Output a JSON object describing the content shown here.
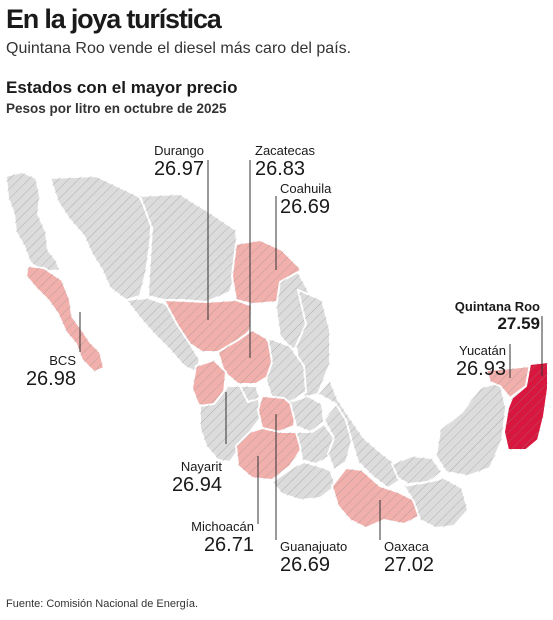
{
  "header": {
    "title": "En la joya turística",
    "subtitle": "Quintana Roo vende el diesel más caro del país."
  },
  "chart": {
    "title": "Estados con el mayor precio",
    "subtitle": "Pesos por litro en octubre de 2025"
  },
  "source": "Fuente: Comisión Nacional de Energía.",
  "colors": {
    "other_states": "#dcdcdc",
    "top_states": "#f2b0ac",
    "max_state": "#d8163e",
    "hatch": "#8a8a8a",
    "border": "#ffffff"
  },
  "states": [
    {
      "name": "Durango",
      "value": "26.97"
    },
    {
      "name": "Zacatecas",
      "value": "26.83"
    },
    {
      "name": "Coahuila",
      "value": "26.69"
    },
    {
      "name": "BCS",
      "value": "26.98"
    },
    {
      "name": "Quintana Roo",
      "value": "27.59",
      "highlight": true
    },
    {
      "name": "Yucatán",
      "value": "26.93"
    },
    {
      "name": "Nayarit",
      "value": "26.94"
    },
    {
      "name": "Michoacán",
      "value": "26.71"
    },
    {
      "name": "Guanajuato",
      "value": "26.69"
    },
    {
      "name": "Oaxaca",
      "value": "27.02"
    }
  ]
}
